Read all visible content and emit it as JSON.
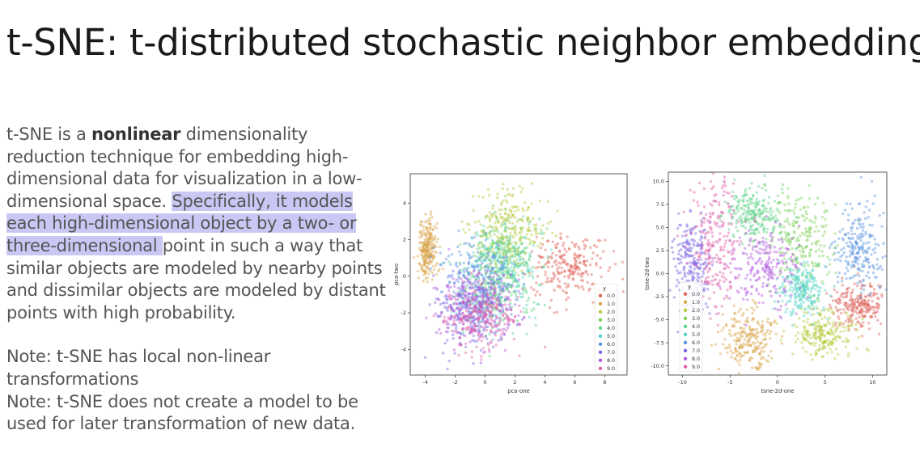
{
  "title": "t-SNE: t-distributed stochastic neighbor embedding",
  "paragraph": {
    "lead": "t-SNE is a ",
    "bold": "nonlinear",
    "rest": " dimensionality reduction technique for embedding high-dimensional data for visualization in a low-dimensional space. ",
    "highlighted": "Specifically, it models each high-dimensional object by a two- or three-dimensional ",
    "tail": "point in such a way that similar objects are modeled by nearby points and dissimilar objects are modeled by distant points with high probability."
  },
  "notes": [
    "Note: t-SNE has local non-linear transformations",
    "Note: t-SNE does not create a model to be used for later transformation of new data."
  ],
  "colors": {
    "highlight": "#c9c8f4",
    "palette": [
      "#e0645a",
      "#d9a54a",
      "#b7c93f",
      "#7ed15b",
      "#5fd38a",
      "#54d4c8",
      "#5a94e0",
      "#7b64e3",
      "#b25ae0",
      "#df5fa9"
    ]
  },
  "chart_data": [
    {
      "type": "scatter",
      "xlabel": "pca-one",
      "ylabel": "pca-two",
      "xlim": [
        -5,
        9.5
      ],
      "ylim": [
        -5.4,
        5.6
      ],
      "xticks": [
        -4,
        -2,
        0,
        2,
        4,
        6,
        8
      ],
      "yticks": [
        -4,
        -2,
        0,
        2,
        4
      ],
      "legend_title": "y",
      "legend_placement": "bottom-right",
      "series": [
        {
          "name": "0.0",
          "center": [
            5.5,
            0.5
          ],
          "spread": [
            1.5,
            1.1
          ]
        },
        {
          "name": "1.0",
          "center": [
            -3.8,
            1.5
          ],
          "spread": [
            0.4,
            1.0
          ]
        },
        {
          "name": "2.0",
          "center": [
            1.6,
            2.6
          ],
          "spread": [
            1.6,
            1.3
          ]
        },
        {
          "name": "3.0",
          "center": [
            1.3,
            1.2
          ],
          "spread": [
            1.3,
            1.3
          ]
        },
        {
          "name": "4.0",
          "center": [
            0.5,
            -1.0
          ],
          "spread": [
            1.6,
            1.3
          ]
        },
        {
          "name": "5.0",
          "center": [
            1.2,
            0.6
          ],
          "spread": [
            1.5,
            1.3
          ]
        },
        {
          "name": "6.0",
          "center": [
            -0.6,
            -0.2
          ],
          "spread": [
            1.6,
            1.3
          ]
        },
        {
          "name": "7.0",
          "center": [
            -1.0,
            -1.9
          ],
          "spread": [
            1.6,
            1.3
          ]
        },
        {
          "name": "8.0",
          "center": [
            -0.4,
            -1.4
          ],
          "spread": [
            1.6,
            1.3
          ]
        },
        {
          "name": "9.0",
          "center": [
            -0.2,
            -2.2
          ],
          "spread": [
            1.6,
            1.1
          ]
        }
      ]
    },
    {
      "type": "scatter",
      "xlabel": "tsne-2d-one",
      "ylabel": "tsne-2d-two",
      "xlim": [
        -11.5,
        11.5
      ],
      "ylim": [
        -11,
        11
      ],
      "xticks": [
        -10,
        -5,
        0,
        5,
        10
      ],
      "yticks": [
        -10.0,
        -7.5,
        -5.0,
        -2.5,
        0.0,
        2.5,
        5.0,
        7.5,
        10.0
      ],
      "legend_title": "y",
      "legend_placement": "bottom-left",
      "series": [
        {
          "name": "0.0",
          "center": [
            8.5,
            -3.5
          ],
          "spread": [
            1.8,
            1.6
          ]
        },
        {
          "name": "1.0",
          "center": [
            -3.0,
            -7.0
          ],
          "spread": [
            1.7,
            2.0
          ]
        },
        {
          "name": "2.0",
          "center": [
            5.0,
            -6.5
          ],
          "spread": [
            2.2,
            1.5
          ]
        },
        {
          "name": "3.0",
          "center": [
            2.5,
            3.5
          ],
          "spread": [
            2.0,
            3.5
          ]
        },
        {
          "name": "4.0",
          "center": [
            -2.5,
            6.5
          ],
          "spread": [
            2.0,
            1.8
          ]
        },
        {
          "name": "5.0",
          "center": [
            2.5,
            -1.5
          ],
          "spread": [
            1.5,
            1.8
          ]
        },
        {
          "name": "6.0",
          "center": [
            8.5,
            2.5
          ],
          "spread": [
            1.6,
            2.8
          ]
        },
        {
          "name": "7.0",
          "center": [
            -9.0,
            1.0
          ],
          "spread": [
            1.2,
            3.3
          ]
        },
        {
          "name": "8.0",
          "center": [
            -1.5,
            0.5
          ],
          "spread": [
            2.2,
            2.4
          ]
        },
        {
          "name": "9.0",
          "center": [
            -6.5,
            3.5
          ],
          "spread": [
            1.8,
            4.5
          ]
        }
      ]
    }
  ]
}
